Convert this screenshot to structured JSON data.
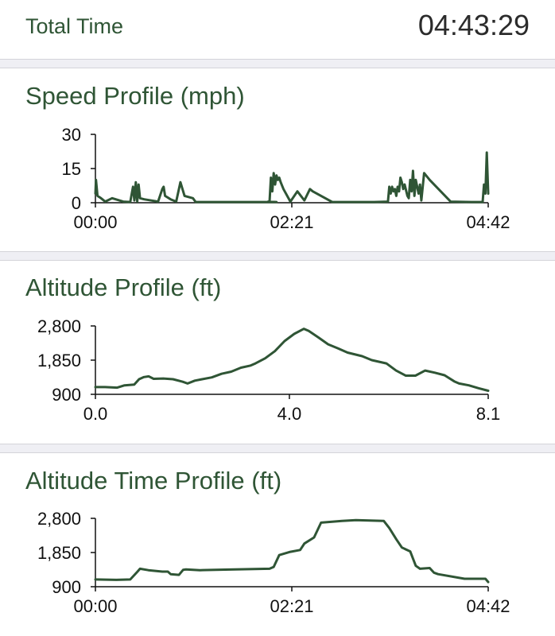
{
  "summary": {
    "total_time_label": "Total Time",
    "total_time_value": "04:43:29"
  },
  "colors": {
    "accent": "#2f5535",
    "line": "#2f5535",
    "separator": "#efeff4",
    "text": "#111111"
  },
  "chart_data": [
    {
      "id": "speed",
      "type": "line",
      "title": "Speed Profile (mph)",
      "xlabel": "",
      "ylabel": "",
      "x_unit": "minutes",
      "xlim": [
        0,
        282
      ],
      "ylim": [
        0,
        30
      ],
      "y_ticks": [
        0,
        15,
        30
      ],
      "y_tick_labels": [
        "0",
        "15",
        "30"
      ],
      "x_ticks": [
        0,
        141,
        282
      ],
      "x_tick_labels": [
        "00:00",
        "02:21",
        "04:42"
      ],
      "grid": false,
      "series": [
        {
          "color": "#2f5535",
          "points": [
            [
              0,
              4
            ],
            [
              0.4,
              10
            ],
            [
              1.5,
              3
            ],
            [
              4,
              2
            ],
            [
              7,
              0.5
            ],
            [
              12,
              2
            ],
            [
              20,
              0.5
            ],
            [
              25,
              0.3
            ],
            [
              27,
              7
            ],
            [
              28,
              1
            ],
            [
              29,
              9
            ],
            [
              30,
              0.5
            ],
            [
              31,
              8
            ],
            [
              32,
              2
            ],
            [
              35,
              1.5
            ],
            [
              45,
              0.5
            ],
            [
              48,
              6
            ],
            [
              49,
              7
            ],
            [
              50,
              3
            ],
            [
              54,
              1.5
            ],
            [
              58,
              0.5
            ],
            [
              61,
              9
            ],
            [
              64,
              3
            ],
            [
              70,
              2
            ],
            [
              72,
              0.3
            ],
            [
              100,
              0.3
            ],
            [
              130,
              0.3
            ],
            [
              124,
              0.5
            ],
            [
              125,
              0.5
            ],
            [
              126,
              11
            ],
            [
              127,
              5
            ],
            [
              128,
              13
            ],
            [
              129,
              8
            ],
            [
              130,
              12
            ],
            [
              131,
              10
            ],
            [
              132,
              11
            ],
            [
              133,
              9
            ],
            [
              135,
              6
            ],
            [
              140,
              0.5
            ],
            [
              145,
              5
            ],
            [
              150,
              1
            ],
            [
              154,
              6
            ],
            [
              156,
              5
            ],
            [
              170,
              0.3
            ],
            [
              200,
              0.3
            ],
            [
              210,
              0.5
            ],
            [
              211,
              7
            ],
            [
              212,
              4
            ],
            [
              213,
              7
            ],
            [
              214,
              5
            ],
            [
              215,
              6
            ],
            [
              216,
              3
            ],
            [
              217,
              7
            ],
            [
              218,
              5
            ],
            [
              219,
              11
            ],
            [
              220,
              9
            ],
            [
              221,
              6
            ],
            [
              222,
              8
            ],
            [
              224,
              3
            ],
            [
              225,
              2
            ],
            [
              226,
              10
            ],
            [
              227,
              5
            ],
            [
              228,
              14
            ],
            [
              229,
              3
            ],
            [
              230,
              10
            ],
            [
              231,
              7
            ],
            [
              232,
              4
            ],
            [
              233,
              8
            ],
            [
              234,
              1
            ],
            [
              236,
              13
            ],
            [
              240,
              10
            ],
            [
              255,
              0.5
            ],
            [
              270,
              0.3
            ],
            [
              278,
              0.3
            ],
            [
              279,
              8
            ],
            [
              280,
              4
            ],
            [
              281,
              22
            ],
            [
              282,
              4
            ]
          ]
        }
      ]
    },
    {
      "id": "altitude-distance",
      "type": "line",
      "title": "Altitude Profile (ft)",
      "xlabel": "",
      "ylabel": "",
      "x_unit": "miles",
      "xlim": [
        0,
        8.1
      ],
      "ylim": [
        900,
        2800
      ],
      "y_ticks": [
        900,
        1850,
        2800
      ],
      "y_tick_labels": [
        "900",
        "1,850",
        "2,800"
      ],
      "x_ticks": [
        0,
        4.0,
        8.1
      ],
      "x_tick_labels": [
        "0.0",
        "4.0",
        "8.1"
      ],
      "grid": false,
      "series": [
        {
          "color": "#2f5535",
          "points": [
            [
              0,
              1100
            ],
            [
              0.2,
              1100
            ],
            [
              0.45,
              1085
            ],
            [
              0.6,
              1150
            ],
            [
              0.8,
              1170
            ],
            [
              0.9,
              1320
            ],
            [
              1.0,
              1380
            ],
            [
              1.1,
              1400
            ],
            [
              1.2,
              1330
            ],
            [
              1.4,
              1340
            ],
            [
              1.6,
              1320
            ],
            [
              1.8,
              1250
            ],
            [
              1.9,
              1200
            ],
            [
              2.05,
              1280
            ],
            [
              2.2,
              1320
            ],
            [
              2.4,
              1370
            ],
            [
              2.6,
              1470
            ],
            [
              2.8,
              1530
            ],
            [
              3.0,
              1640
            ],
            [
              3.2,
              1700
            ],
            [
              3.3,
              1760
            ],
            [
              3.5,
              1900
            ],
            [
              3.7,
              2100
            ],
            [
              3.9,
              2380
            ],
            [
              4.1,
              2580
            ],
            [
              4.3,
              2720
            ],
            [
              4.4,
              2660
            ],
            [
              4.6,
              2480
            ],
            [
              4.8,
              2290
            ],
            [
              5.0,
              2180
            ],
            [
              5.2,
              2060
            ],
            [
              5.5,
              1960
            ],
            [
              5.7,
              1850
            ],
            [
              6.0,
              1760
            ],
            [
              6.2,
              1560
            ],
            [
              6.4,
              1420
            ],
            [
              6.6,
              1420
            ],
            [
              6.8,
              1560
            ],
            [
              7.0,
              1500
            ],
            [
              7.2,
              1430
            ],
            [
              7.4,
              1260
            ],
            [
              7.5,
              1200
            ],
            [
              7.7,
              1150
            ],
            [
              7.9,
              1070
            ],
            [
              8.1,
              1000
            ]
          ]
        }
      ]
    },
    {
      "id": "altitude-time",
      "type": "line",
      "title": "Altitude Time Profile (ft)",
      "xlabel": "",
      "ylabel": "",
      "x_unit": "minutes",
      "xlim": [
        0,
        282
      ],
      "ylim": [
        900,
        2800
      ],
      "y_ticks": [
        900,
        1850,
        2800
      ],
      "y_tick_labels": [
        "900",
        "1,850",
        "2,800"
      ],
      "x_ticks": [
        0,
        141,
        282
      ],
      "x_tick_labels": [
        "00:00",
        "02:21",
        "04:42"
      ],
      "grid": false,
      "series": [
        {
          "color": "#2f5535",
          "points": [
            [
              0,
              1100
            ],
            [
              15,
              1090
            ],
            [
              25,
              1100
            ],
            [
              30,
              1310
            ],
            [
              32,
              1400
            ],
            [
              38,
              1360
            ],
            [
              48,
              1320
            ],
            [
              52,
              1320
            ],
            [
              54,
              1250
            ],
            [
              60,
              1230
            ],
            [
              63,
              1370
            ],
            [
              65,
              1380
            ],
            [
              75,
              1360
            ],
            [
              100,
              1380
            ],
            [
              125,
              1400
            ],
            [
              128,
              1450
            ],
            [
              132,
              1780
            ],
            [
              140,
              1870
            ],
            [
              147,
              1920
            ],
            [
              150,
              2100
            ],
            [
              157,
              2270
            ],
            [
              162,
              2680
            ],
            [
              177,
              2730
            ],
            [
              187,
              2750
            ],
            [
              207,
              2730
            ],
            [
              211,
              2530
            ],
            [
              216,
              2220
            ],
            [
              220,
              1990
            ],
            [
              226,
              1880
            ],
            [
              230,
              1480
            ],
            [
              233,
              1400
            ],
            [
              240,
              1420
            ],
            [
              243,
              1290
            ],
            [
              246,
              1250
            ],
            [
              265,
              1120
            ],
            [
              280,
              1120
            ],
            [
              282,
              1030
            ]
          ]
        }
      ]
    }
  ]
}
